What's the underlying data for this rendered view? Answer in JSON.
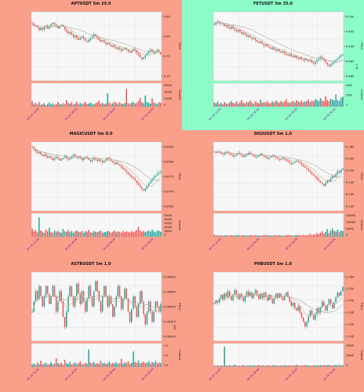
{
  "colors": {
    "up": "#26a69a",
    "down": "#ef5350",
    "ma": "#c8b99a",
    "ma2": "#aaaaaa",
    "bg_default": "#fa9f8a",
    "bg_highlight": "#8cfcc8",
    "plot_bg": "#f7f7f7"
  },
  "chart_data": [
    {
      "type": "candlestick",
      "title": "APTUSDT 5m 29.0",
      "background": "#fa9f8a",
      "ylabel": "Price",
      "volume_label": "Volume",
      "price_ticks": [
        "9.85",
        "9.80",
        "9.75",
        "9.70"
      ],
      "volume_ticks": [
        "60000",
        "40000",
        "20000",
        "0"
      ],
      "x_ticks": [
        "04-19 14:00",
        "04-19 16:00",
        "04-19 18:00",
        "04-19 20:00"
      ],
      "ylim": [
        9.66,
        9.9
      ],
      "vlim": [
        0,
        75000
      ],
      "close": [
        9.858,
        9.851,
        9.853,
        9.845,
        9.836,
        9.844,
        9.838,
        9.847,
        9.852,
        9.841,
        9.848,
        9.857,
        9.861,
        9.856,
        9.849,
        9.842,
        9.851,
        9.854,
        9.848,
        9.839,
        9.832,
        9.825,
        9.829,
        9.82,
        9.812,
        9.818,
        9.808,
        9.802,
        9.809,
        9.814,
        9.806,
        9.799,
        9.795,
        9.801,
        9.808,
        9.814,
        9.822,
        9.816,
        9.808,
        9.802,
        9.796,
        9.801,
        9.793,
        9.787,
        9.792,
        9.786,
        9.779,
        9.784,
        9.777,
        9.771,
        9.776,
        9.77,
        9.764,
        9.769,
        9.775,
        9.769,
        9.762,
        9.758,
        9.764,
        9.771,
        9.765,
        9.757,
        9.751,
        9.742,
        9.735,
        9.741,
        9.748,
        9.756,
        9.763,
        9.768,
        9.762,
        9.755,
        9.761,
        9.767,
        9.76,
        9.752
      ],
      "volume": [
        18000,
        9000,
        12000,
        7000,
        14000,
        6000,
        8000,
        11000,
        5000,
        9000,
        13000,
        7000,
        10000,
        6000,
        8000,
        15000,
        9000,
        7000,
        11000,
        8000,
        21000,
        12000,
        9000,
        14000,
        7000,
        10000,
        16000,
        8000,
        12000,
        9000,
        11000,
        15000,
        8000,
        10000,
        13000,
        9000,
        7000,
        11000,
        14000,
        19000,
        9000,
        12000,
        8000,
        10000,
        42000,
        13000,
        9000,
        11000,
        16000,
        12000,
        9000,
        14000,
        10000,
        8000,
        12000,
        56000,
        11000,
        9000,
        13000,
        15000,
        10000,
        12000,
        18000,
        28000,
        14000,
        11000,
        35000,
        15000,
        12000,
        10000,
        26000,
        13000,
        11000,
        9000,
        14000,
        12000
      ]
    },
    {
      "type": "candlestick",
      "title": "FETUSDT 5m 35.0",
      "background": "#8cfcc8",
      "ylabel": "Price",
      "volume_label": "Volume",
      "offset_text": "1e-3",
      "price_ticks": [
        "4.500",
        "4.495",
        "4.490",
        "4.485",
        "4.480"
      ],
      "volume_ticks": [
        "4000",
        "2000",
        "0"
      ],
      "x_ticks": [
        "04-19 14:00",
        "04-19 16:00",
        "04-19 18:00",
        "04-19 20:00"
      ],
      "ylim": [
        4.477,
        4.5035
      ],
      "vlim": [
        0,
        5000
      ],
      "close": [
        4.4985,
        4.4995,
        4.4998,
        4.499,
        4.4994,
        4.4988,
        4.498,
        4.4984,
        4.4975,
        4.497,
        4.4978,
        4.4972,
        4.4965,
        4.496,
        4.4966,
        4.4958,
        4.495,
        4.4955,
        4.4948,
        4.494,
        4.4944,
        4.4936,
        4.493,
        4.4934,
        4.4926,
        4.492,
        4.4915,
        4.492,
        4.4912,
        4.4905,
        4.491,
        4.4902,
        4.4897,
        4.4892,
        4.4898,
        4.489,
        4.4885,
        4.4891,
        4.4884,
        4.4878,
        4.4882,
        4.4875,
        4.487,
        4.4866,
        4.4872,
        4.4865,
        4.486,
        4.4866,
        4.4858,
        4.4854,
        4.486,
        4.4852,
        4.4848,
        4.4855,
        4.485,
        4.4844,
        4.4848,
        4.484,
        4.4836,
        4.4842,
        4.485,
        4.4856,
        4.4862,
        4.4856,
        4.4848,
        4.484,
        4.4832,
        4.4826,
        4.4832,
        4.4838,
        4.4844,
        4.485,
        4.4856,
        4.4862,
        4.4868,
        4.4872
      ],
      "volume": [
        900,
        700,
        1100,
        600,
        800,
        500,
        1000,
        700,
        600,
        900,
        1200,
        800,
        700,
        1100,
        600,
        900,
        1400,
        800,
        700,
        1000,
        900,
        1300,
        800,
        600,
        1100,
        900,
        700,
        1500,
        800,
        1000,
        900,
        1200,
        700,
        800,
        1100,
        900,
        1300,
        1000,
        800,
        1200,
        900,
        1100,
        1600,
        900,
        800,
        1000,
        1200,
        900,
        1400,
        1100,
        1000,
        1300,
        900,
        1100,
        1200,
        1500,
        1000,
        1300,
        1100,
        1600,
        1400,
        1200,
        1800,
        1300,
        1100,
        2200,
        1400,
        1200,
        1700,
        1500,
        1300,
        2600,
        1400,
        1200,
        1900,
        2100
      ]
    },
    {
      "type": "candlestick",
      "title": "MAGICUSDT 5m 0.0",
      "background": "#fa9f8a",
      "ylabel": "Price",
      "volume_label": "Volume",
      "price_ticks": [
        "0.8785",
        "0.8780",
        "0.8775",
        "0.8770",
        "0.8765"
      ],
      "volume_ticks": [
        "50000",
        "40000",
        "30000",
        "20000",
        "10000",
        "0"
      ],
      "x_ticks": [
        "04-19 14:00",
        "04-19 16:00",
        "04-19 18:00",
        "04-19 20:00"
      ],
      "ylim": [
        0.87628,
        0.87888
      ],
      "vlim": [
        0,
        52000
      ],
      "close": [
        0.87868,
        0.8786,
        0.87852,
        0.87845,
        0.8785,
        0.87842,
        0.87836,
        0.87841,
        0.87834,
        0.87828,
        0.87832,
        0.87826,
        0.8782,
        0.87826,
        0.87832,
        0.87825,
        0.87818,
        0.87823,
        0.87829,
        0.87834,
        0.87828,
        0.87822,
        0.87828,
        0.87834,
        0.8784,
        0.87834,
        0.87828,
        0.87834,
        0.87826,
        0.8782,
        0.87826,
        0.87832,
        0.87826,
        0.8782,
        0.87815,
        0.87821,
        0.87828,
        0.87822,
        0.87816,
        0.87822,
        0.87816,
        0.8781,
        0.87816,
        0.87822,
        0.87828,
        0.87822,
        0.87816,
        0.8781,
        0.87804,
        0.8781,
        0.87804,
        0.87798,
        0.87792,
        0.87786,
        0.8778,
        0.87774,
        0.87768,
        0.87762,
        0.87756,
        0.8775,
        0.87742,
        0.87734,
        0.87726,
        0.87718,
        0.8771,
        0.87704,
        0.87712,
        0.87722,
        0.87732,
        0.8774,
        0.87748,
        0.87755,
        0.87762,
        0.87768,
        0.87772,
        0.87776
      ],
      "volume": [
        18000,
        12000,
        15000,
        10000,
        43000,
        14000,
        11000,
        9000,
        16000,
        12000,
        20000,
        10000,
        9000,
        14000,
        11000,
        13000,
        10000,
        9000,
        17000,
        12000,
        11000,
        15000,
        10000,
        13000,
        9000,
        12000,
        14000,
        11000,
        10000,
        13000,
        9000,
        12000,
        11000,
        15000,
        10000,
        9000,
        13000,
        11000,
        10000,
        12000,
        14000,
        9000,
        11000,
        10000,
        13000,
        12000,
        9000,
        11000,
        14000,
        10000,
        12000,
        11000,
        9000,
        13000,
        10000,
        12000,
        11000,
        9000,
        13000,
        10000,
        12000,
        15000,
        22000,
        14000,
        11000,
        13000,
        10000,
        12000,
        14000,
        11000,
        16000,
        12000,
        10000,
        14000,
        13000,
        11000
      ]
    },
    {
      "type": "candlestick",
      "title": "DIGIUSDT 5m 1.0",
      "background": "#fa9f8a",
      "ylabel": "Price",
      "volume_label": "Volume",
      "price_ticks": [
        "0.360",
        "0.355",
        "0.350",
        "0.345",
        "0.340",
        "0.335"
      ],
      "volume_ticks": [
        "150000",
        "100000",
        "50000",
        "0"
      ],
      "x_ticks": [
        "04-19 14:00",
        "04-19 16:00",
        "04-19 18:00",
        "04-19 20:00"
      ],
      "ylim": [
        0.3315,
        0.3625
      ],
      "vlim": [
        0,
        170000
      ],
      "close": [
        0.358,
        0.3576,
        0.3582,
        0.3578,
        0.3572,
        0.3568,
        0.3574,
        0.358,
        0.3576,
        0.357,
        0.3566,
        0.356,
        0.3565,
        0.357,
        0.3575,
        0.357,
        0.3564,
        0.3558,
        0.3564,
        0.357,
        0.3576,
        0.3571,
        0.3566,
        0.356,
        0.3555,
        0.356,
        0.3566,
        0.3572,
        0.3566,
        0.356,
        0.3555,
        0.3549,
        0.3554,
        0.356,
        0.3566,
        0.356,
        0.3554,
        0.3548,
        0.3543,
        0.3548,
        0.3554,
        0.3548,
        0.3542,
        0.3536,
        0.353,
        0.3525,
        0.353,
        0.3536,
        0.3541,
        0.3535,
        0.3529,
        0.3522,
        0.3516,
        0.351,
        0.3504,
        0.3498,
        0.349,
        0.3482,
        0.3474,
        0.3466,
        0.3458,
        0.345,
        0.3442,
        0.3436,
        0.3428,
        0.344,
        0.3452,
        0.3446,
        0.346,
        0.3472,
        0.3466,
        0.348,
        0.3494,
        0.3488,
        0.35,
        0.3506
      ],
      "volume": [
        15000,
        9000,
        12000,
        8000,
        11000,
        7000,
        10000,
        13000,
        9000,
        8000,
        12000,
        10000,
        9000,
        11000,
        14000,
        8000,
        10000,
        12000,
        9000,
        11000,
        8000,
        13000,
        10000,
        9000,
        12000,
        11000,
        8000,
        10000,
        9000,
        14000,
        11000,
        12000,
        9000,
        10000,
        8000,
        13000,
        11000,
        9000,
        12000,
        10000,
        8000,
        11000,
        9000,
        14000,
        10000,
        12000,
        9000,
        11000,
        13000,
        10000,
        12000,
        9000,
        14000,
        11000,
        10000,
        13000,
        22000,
        12000,
        18000,
        14000,
        26000,
        20000,
        30000,
        40000,
        24000,
        35000,
        55000,
        28000,
        45000,
        60000,
        42000,
        38000,
        50000,
        34000,
        46000,
        40000
      ]
    },
    {
      "type": "candlestick",
      "title": "ASTRUSDT 5m 1.0",
      "background": "#fa9f8a",
      "ylabel": "Price",
      "volume_label": "Volume",
      "offset_text": "1e6",
      "price_ticks": [
        "0.06365",
        "0.06360",
        "0.06355",
        "0.06350",
        "0.06345"
      ],
      "volume_ticks": [
        "1.0",
        "0.5",
        "0.0"
      ],
      "x_ticks": [
        "04-19 14:00",
        "04-19 16:00",
        "04-19 18:00",
        "04-19 20:00"
      ],
      "ylim": [
        0.063405,
        0.063675
      ],
      "vlim": [
        0,
        1.15
      ],
      "close": [
        0.06352,
        0.06356,
        0.0636,
        0.06357,
        0.06362,
        0.06358,
        0.06354,
        0.06358,
        0.06362,
        0.06359,
        0.06355,
        0.06358,
        0.06362,
        0.06358,
        0.06352,
        0.06356,
        0.0636,
        0.06356,
        0.0635,
        0.06346,
        0.06352,
        0.06358,
        0.06362,
        0.06358,
        0.06354,
        0.06358,
        0.06363,
        0.06359,
        0.06355,
        0.0636,
        0.06356,
        0.06352,
        0.06357,
        0.06362,
        0.06358,
        0.06354,
        0.0636,
        0.06364,
        0.0636,
        0.06356,
        0.06352,
        0.06358,
        0.06362,
        0.06358,
        0.06354,
        0.06358,
        0.06355,
        0.0635,
        0.06354,
        0.06358,
        0.06362,
        0.06358,
        0.06353,
        0.06357,
        0.06361,
        0.06357,
        0.06352,
        0.06348,
        0.06353,
        0.06358,
        0.06354,
        0.0635,
        0.06355,
        0.0636,
        0.06356,
        0.06351,
        0.06347,
        0.06352,
        0.06356,
        0.06352,
        0.06348,
        0.06352,
        0.06356,
        0.06354,
        0.06352,
        0.06355
      ],
      "volume": [
        0.12,
        0.18,
        0.1,
        0.22,
        0.14,
        0.3,
        0.12,
        0.16,
        0.2,
        0.11,
        0.15,
        0.24,
        0.13,
        0.17,
        0.42,
        0.19,
        0.14,
        0.21,
        0.12,
        0.35,
        0.18,
        0.15,
        0.26,
        0.13,
        0.17,
        0.22,
        0.14,
        0.19,
        0.28,
        0.16,
        0.13,
        0.2,
        0.15,
        0.85,
        0.22,
        0.18,
        0.25,
        0.14,
        0.19,
        0.16,
        0.3,
        0.17,
        0.21,
        0.14,
        0.18,
        0.26,
        0.15,
        0.2,
        0.17,
        0.23,
        0.14,
        0.19,
        0.4,
        0.16,
        0.22,
        0.18,
        0.27,
        0.15,
        0.2,
        0.75,
        0.24,
        0.19,
        0.31,
        0.17,
        0.22,
        0.26,
        0.18,
        0.21,
        0.28,
        0.16,
        0.24,
        0.2,
        0.3,
        0.18,
        0.22,
        0.19
      ]
    },
    {
      "type": "candlestick",
      "title": "PHBUSDT 5m 1.0",
      "background": "#fa9f8a",
      "ylabel": "Price",
      "volume_label": "Volume",
      "price_ticks": [
        "1.760",
        "1.755",
        "1.750",
        "1.745",
        "1.740",
        "1.735"
      ],
      "volume_ticks": [
        "40000",
        "20000",
        "0"
      ],
      "x_ticks": [
        "04-19 14:00",
        "04-19 16:00",
        "04-19 18:00",
        "04-19 20:00"
      ],
      "ylim": [
        1.7335,
        1.764
      ],
      "vlim": [
        0,
        52000
      ],
      "close": [
        1.75,
        1.7515,
        1.7505,
        1.7525,
        1.754,
        1.752,
        1.7545,
        1.753,
        1.7555,
        1.7535,
        1.7515,
        1.754,
        1.756,
        1.754,
        1.752,
        1.7545,
        1.753,
        1.751,
        1.7535,
        1.7555,
        1.7535,
        1.755,
        1.7525,
        1.7545,
        1.756,
        1.754,
        1.752,
        1.7545,
        1.7525,
        1.755,
        1.753,
        1.7515,
        1.754,
        1.752,
        1.75,
        1.7525,
        1.7545,
        1.7525,
        1.7545,
        1.753,
        1.7515,
        1.7535,
        1.755,
        1.753,
        1.751,
        1.749,
        1.7505,
        1.748,
        1.747,
        1.749,
        1.746,
        1.744,
        1.742,
        1.74,
        1.742,
        1.7445,
        1.747,
        1.745,
        1.743,
        1.7455,
        1.748,
        1.746,
        1.7485,
        1.751,
        1.749,
        1.747,
        1.7495,
        1.752,
        1.75,
        1.748,
        1.7505,
        1.753,
        1.755,
        1.7535,
        1.7555,
        1.7575
      ],
      "volume": [
        3000,
        2500,
        4000,
        2200,
        3500,
        2800,
        45000,
        3200,
        2600,
        3800,
        2400,
        3000,
        5200,
        2800,
        3400,
        2600,
        3100,
        4200,
        2700,
        3300,
        2900,
        3600,
        2500,
        3900,
        2800,
        3200,
        4600,
        2700,
        3500,
        3000,
        2600,
        3800,
        3100,
        2900,
        3400,
        4100,
        2800,
        3300,
        2700,
        3600,
        3000,
        4400,
        2900,
        3200,
        3800,
        2700,
        3400,
        3100,
        4600,
        3300,
        2900,
        3800,
        3500,
        4200,
        3100,
        3700,
        3300,
        2900,
        4000,
        3400,
        3000,
        3600,
        4300,
        3200,
        3700,
        3900,
        3300,
        4600,
        3500,
        3100,
        3800,
        4200,
        3400,
        5200,
        3600,
        4000
      ]
    }
  ]
}
